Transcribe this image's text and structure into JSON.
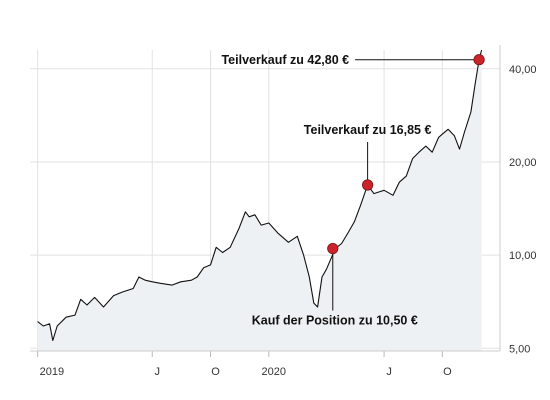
{
  "chart_data": {
    "type": "line",
    "title": "",
    "xlabel": "",
    "ylabel": "",
    "y_scale": "log",
    "ylim": [
      4.9,
      46
    ],
    "xlim": [
      "2018-12-20",
      "2020-12-31"
    ],
    "grid": {
      "horizontal": true,
      "vertical": true
    },
    "colors": {
      "line": "#111111",
      "area": "#eef1f3",
      "marker": "#cc2229",
      "grid": "#e2e2e2",
      "axis": "#cccccc"
    },
    "y_ticks": [
      {
        "value": 5,
        "label": "5,00"
      },
      {
        "value": 10,
        "label": "10,00"
      },
      {
        "value": 20,
        "label": "20,00"
      },
      {
        "value": 40,
        "label": "40,00"
      }
    ],
    "x_ticks": [
      {
        "date": "2019-01-01",
        "label": "2019"
      },
      {
        "date": "2019-07-01",
        "label": "J"
      },
      {
        "date": "2019-10-01",
        "label": "O"
      },
      {
        "date": "2020-01-01",
        "label": "2020"
      },
      {
        "date": "2020-07-01",
        "label": "J"
      },
      {
        "date": "2020-10-01",
        "label": "O"
      }
    ],
    "series": [
      {
        "points": [
          [
            "2019-01-01",
            6.1
          ],
          [
            "2019-01-10",
            5.9
          ],
          [
            "2019-01-20",
            6.0
          ],
          [
            "2019-01-25",
            5.3
          ],
          [
            "2019-02-01",
            5.9
          ],
          [
            "2019-02-15",
            6.3
          ],
          [
            "2019-03-01",
            6.4
          ],
          [
            "2019-03-10",
            7.2
          ],
          [
            "2019-03-20",
            6.9
          ],
          [
            "2019-04-01",
            7.3
          ],
          [
            "2019-04-15",
            6.8
          ],
          [
            "2019-05-01",
            7.4
          ],
          [
            "2019-05-15",
            7.6
          ],
          [
            "2019-06-01",
            7.8
          ],
          [
            "2019-06-10",
            8.5
          ],
          [
            "2019-06-20",
            8.3
          ],
          [
            "2019-07-01",
            8.2
          ],
          [
            "2019-07-15",
            8.1
          ],
          [
            "2019-08-01",
            8.0
          ],
          [
            "2019-08-15",
            8.2
          ],
          [
            "2019-09-01",
            8.3
          ],
          [
            "2019-09-10",
            8.5
          ],
          [
            "2019-09-20",
            9.1
          ],
          [
            "2019-10-01",
            9.3
          ],
          [
            "2019-10-10",
            10.6
          ],
          [
            "2019-10-20",
            10.2
          ],
          [
            "2019-11-01",
            10.6
          ],
          [
            "2019-11-15",
            12.2
          ],
          [
            "2019-11-25",
            13.8
          ],
          [
            "2019-12-01",
            13.3
          ],
          [
            "2019-12-10",
            13.5
          ],
          [
            "2019-12-20",
            12.5
          ],
          [
            "2020-01-01",
            12.7
          ],
          [
            "2020-01-15",
            11.8
          ],
          [
            "2020-02-01",
            11.0
          ],
          [
            "2020-02-15",
            11.5
          ],
          [
            "2020-02-25",
            10.0
          ],
          [
            "2020-03-05",
            8.5
          ],
          [
            "2020-03-12",
            7.0
          ],
          [
            "2020-03-18",
            6.8
          ],
          [
            "2020-03-25",
            8.5
          ],
          [
            "2020-04-01",
            9.0
          ],
          [
            "2020-04-15",
            10.5
          ],
          [
            "2020-04-25",
            10.9
          ],
          [
            "2020-05-05",
            11.8
          ],
          [
            "2020-05-15",
            12.8
          ],
          [
            "2020-05-25",
            14.5
          ],
          [
            "2020-06-05",
            16.85
          ],
          [
            "2020-06-15",
            15.8
          ],
          [
            "2020-07-01",
            16.2
          ],
          [
            "2020-07-15",
            15.6
          ],
          [
            "2020-07-25",
            17.2
          ],
          [
            "2020-08-05",
            18.0
          ],
          [
            "2020-08-15",
            20.5
          ],
          [
            "2020-08-25",
            21.5
          ],
          [
            "2020-09-05",
            22.5
          ],
          [
            "2020-09-15",
            21.5
          ],
          [
            "2020-09-25",
            24.0
          ],
          [
            "2020-10-01",
            24.6
          ],
          [
            "2020-10-10",
            25.5
          ],
          [
            "2020-10-20",
            24.3
          ],
          [
            "2020-10-28",
            22.0
          ],
          [
            "2020-11-05",
            25.0
          ],
          [
            "2020-11-15",
            29.0
          ],
          [
            "2020-11-22",
            36.0
          ],
          [
            "2020-11-28",
            42.8
          ],
          [
            "2020-12-02",
            46.0
          ]
        ]
      }
    ],
    "annotations": [
      {
        "date": "2020-04-11",
        "value": 10.5,
        "text": "Kauf der Position zu 10,50 €",
        "label_position": "below"
      },
      {
        "date": "2020-06-05",
        "value": 16.85,
        "text": "Teilverkauf zu 16,85 €",
        "label_position": "above"
      },
      {
        "date": "2020-11-28",
        "value": 42.8,
        "text": "Teilverkauf zu 42,80 €",
        "label_position": "left"
      }
    ]
  }
}
